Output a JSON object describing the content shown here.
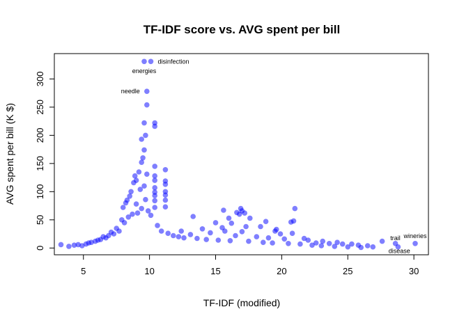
{
  "chart_data": {
    "type": "scatter",
    "title": "TF-IDF score vs. AVG spent per bill",
    "xlabel": "TF-IDF (modified)",
    "ylabel": "AVG spent per bill (K $)",
    "xlim": [
      2.8,
      31.1
    ],
    "ylim": [
      -12,
      345
    ],
    "xticks": [
      5,
      10,
      15,
      20,
      25,
      30
    ],
    "yticks": [
      0,
      50,
      100,
      150,
      200,
      250,
      300
    ],
    "grid": false,
    "point_color": "#0000ff",
    "annotations": [
      {
        "text": "disinfection",
        "x": 10.1,
        "y": 331
      },
      {
        "text": "energies",
        "x": 9.6,
        "y": 314
      },
      {
        "text": "needle",
        "x": 9.8,
        "y": 278
      },
      {
        "text": "wineries",
        "x": 30.1,
        "y": 8
      },
      {
        "text": "trail",
        "x": 28.6,
        "y": 8
      },
      {
        "text": "disease",
        "x": 28.9,
        "y": 1
      }
    ],
    "series": [
      {
        "points": [
          [
            9.6,
            331
          ],
          [
            10.1,
            331
          ],
          [
            9.8,
            278
          ],
          [
            9.8,
            254
          ],
          [
            9.6,
            222
          ],
          [
            10.4,
            222
          ],
          [
            10.4,
            216
          ],
          [
            9.7,
            200
          ],
          [
            9.4,
            193
          ],
          [
            9.6,
            174
          ],
          [
            9.5,
            160
          ],
          [
            9.4,
            152
          ],
          [
            10.4,
            145
          ],
          [
            11.2,
            139
          ],
          [
            9.2,
            135
          ],
          [
            9.8,
            131
          ],
          [
            10.4,
            128
          ],
          [
            8.9,
            128
          ],
          [
            9.0,
            120
          ],
          [
            10.4,
            120
          ],
          [
            11.2,
            119
          ],
          [
            8.8,
            116
          ],
          [
            9.6,
            110
          ],
          [
            11.2,
            113
          ],
          [
            10.4,
            107
          ],
          [
            9.3,
            104
          ],
          [
            8.6,
            100
          ],
          [
            11.2,
            100
          ],
          [
            10.4,
            99
          ],
          [
            8.5,
            92
          ],
          [
            10.4,
            93
          ],
          [
            11.2,
            94
          ],
          [
            8.3,
            85
          ],
          [
            9.7,
            86
          ],
          [
            8.2,
            80
          ],
          [
            10.4,
            84
          ],
          [
            11.2,
            85
          ],
          [
            9.0,
            78
          ],
          [
            8.0,
            72
          ],
          [
            10.4,
            72
          ],
          [
            11.2,
            73
          ],
          [
            16.9,
            70
          ],
          [
            21.0,
            70
          ],
          [
            17.0,
            66
          ],
          [
            15.6,
            67
          ],
          [
            16.6,
            63
          ],
          [
            17.2,
            62
          ],
          [
            16.8,
            60
          ],
          [
            13.3,
            56
          ],
          [
            16.0,
            53
          ],
          [
            17.6,
            53
          ],
          [
            18.8,
            47
          ],
          [
            15.0,
            45
          ],
          [
            20.9,
            48
          ],
          [
            20.7,
            46
          ],
          [
            16.2,
            44
          ],
          [
            17.3,
            38
          ],
          [
            18.4,
            38
          ],
          [
            15.5,
            36
          ],
          [
            14.0,
            34
          ],
          [
            19.6,
            33
          ],
          [
            12.4,
            30
          ],
          [
            19.5,
            30
          ],
          [
            17.0,
            29
          ],
          [
            15.7,
            30
          ],
          [
            14.6,
            27
          ],
          [
            13.1,
            24
          ],
          [
            19.9,
            25
          ],
          [
            20.8,
            26
          ],
          [
            16.5,
            22
          ],
          [
            12.2,
            20
          ],
          [
            18.1,
            20
          ],
          [
            19.0,
            18
          ],
          [
            21.7,
            17
          ],
          [
            20.2,
            16
          ],
          [
            22.0,
            14
          ],
          [
            23.1,
            12
          ],
          [
            24.2,
            10
          ],
          [
            22.6,
            9
          ],
          [
            23.6,
            8
          ],
          [
            24.6,
            7
          ],
          [
            25.3,
            7
          ],
          [
            25.8,
            5
          ],
          [
            26.5,
            4
          ],
          [
            26.9,
            2
          ],
          [
            27.6,
            12
          ],
          [
            28.6,
            8
          ],
          [
            28.8,
            2
          ],
          [
            30.1,
            8
          ],
          [
            3.3,
            6
          ],
          [
            3.9,
            3
          ],
          [
            4.3,
            5
          ],
          [
            4.6,
            6
          ],
          [
            4.9,
            4
          ],
          [
            5.2,
            7
          ],
          [
            5.4,
            9
          ],
          [
            5.6,
            10
          ],
          [
            5.9,
            12
          ],
          [
            6.1,
            14
          ],
          [
            6.3,
            15
          ],
          [
            6.5,
            20
          ],
          [
            6.7,
            18
          ],
          [
            6.9,
            22
          ],
          [
            7.1,
            28
          ],
          [
            7.3,
            25
          ],
          [
            7.5,
            35
          ],
          [
            7.7,
            30
          ],
          [
            7.9,
            50
          ],
          [
            8.1,
            45
          ],
          [
            8.4,
            55
          ],
          [
            8.7,
            60
          ],
          [
            9.1,
            62
          ],
          [
            9.4,
            70
          ],
          [
            9.9,
            66
          ],
          [
            10.1,
            58
          ],
          [
            10.6,
            40
          ],
          [
            10.9,
            30
          ],
          [
            11.4,
            26
          ],
          [
            11.8,
            22
          ],
          [
            12.6,
            18
          ],
          [
            13.6,
            17
          ],
          [
            14.3,
            15
          ],
          [
            15.2,
            14
          ],
          [
            16.1,
            13
          ],
          [
            17.5,
            12
          ],
          [
            18.6,
            10
          ],
          [
            19.3,
            9
          ],
          [
            20.5,
            8
          ],
          [
            21.4,
            7
          ],
          [
            22.3,
            5
          ],
          [
            23.0,
            4
          ],
          [
            24.0,
            3
          ],
          [
            25.0,
            2
          ],
          [
            26.0,
            1
          ]
        ]
      }
    ]
  }
}
